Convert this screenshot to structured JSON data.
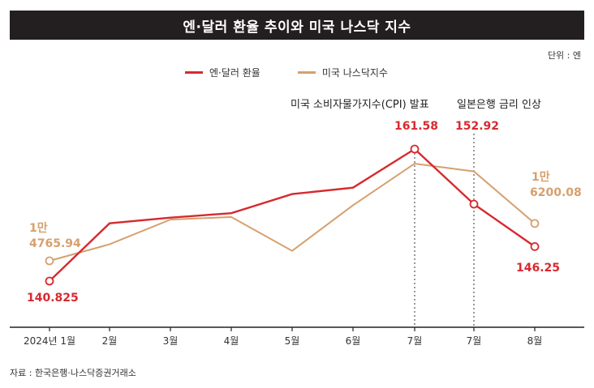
{
  "title": "엔·달러 환율 추이와 미국 나스닥 지수",
  "unit": "단위 : 엔",
  "source": "자료 : 한국은행·나스닥증권거래소",
  "colors": {
    "usdjpy": "#d62a2f",
    "nasdaq": "#d6a06e",
    "title_bg": "#231f20"
  },
  "chart_data": {
    "type": "line",
    "categories": [
      "2024년 1월",
      "2월",
      "3월",
      "4월",
      "5월",
      "6월",
      "7월",
      "7월",
      "8월"
    ],
    "series": [
      {
        "name": "엔·달러 환율",
        "values": [
          140.825,
          149.9,
          150.8,
          151.5,
          154.5,
          155.5,
          161.58,
          152.92,
          146.25
        ]
      },
      {
        "name": "미국 나스닥지수",
        "values": [
          14765.94,
          15400,
          16350,
          16450,
          15150,
          16900,
          18500,
          18200,
          16200.08
        ]
      }
    ],
    "data_labels": {
      "usd_start": "140.825",
      "usd_peak": "161.58",
      "usd_mid": "152.92",
      "usd_end": "146.25",
      "nas_start_1": "1만",
      "nas_start_2": "4765.94",
      "nas_end_1": "1만",
      "nas_end_2": "6200.08"
    },
    "annotations": [
      {
        "text": "미국 소비자물가지수(CPI) 발표",
        "category_index": 6
      },
      {
        "text": "일본은행 금리 인상",
        "category_index": 7
      }
    ],
    "y_axes": "hidden",
    "grid": false,
    "legend_position": "top-center"
  }
}
